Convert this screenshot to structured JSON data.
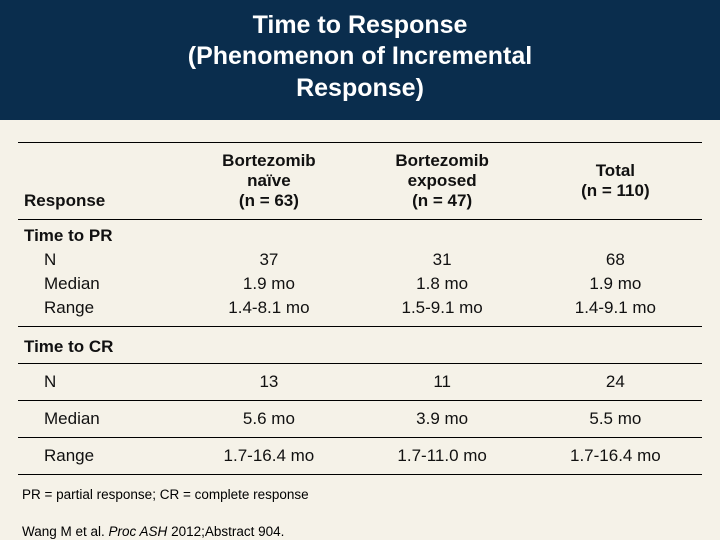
{
  "title_line1": "Time to Response",
  "title_line2": "(Phenomenon of Incremental",
  "title_line3": "Response)",
  "table": {
    "headers": {
      "response": "Response",
      "col1_l1": "Bortezomib",
      "col1_l2": "naïve",
      "col1_l3": "(n = 63)",
      "col2_l1": "Bortezomib",
      "col2_l2": "exposed",
      "col2_l3": "(n = 47)",
      "col3_l1": "Total",
      "col3_l2": "(n = 110)"
    },
    "pr": {
      "header": "Time to PR",
      "rows": {
        "n_label": "N",
        "n_v1": "37",
        "n_v2": "31",
        "n_v3": "68",
        "med_label": "Median",
        "med_v1": "1.9 mo",
        "med_v2": "1.8 mo",
        "med_v3": "1.9 mo",
        "rng_label": "Range",
        "rng_v1": "1.4-8.1 mo",
        "rng_v2": "1.5-9.1 mo",
        "rng_v3": "1.4-9.1 mo"
      }
    },
    "cr": {
      "header": "Time to CR",
      "rows": {
        "n_label": "N",
        "n_v1": "13",
        "n_v2": "11",
        "n_v3": "24",
        "med_label": "Median",
        "med_v1": "5.6 mo",
        "med_v2": "3.9 mo",
        "med_v3": "5.5 mo",
        "rng_label": "Range",
        "rng_v1": "1.7-16.4 mo",
        "rng_v2": "1.7-11.0 mo",
        "rng_v3": "1.7-16.4 mo"
      }
    }
  },
  "footnote": "PR = partial response; CR = complete response",
  "citation_author": "Wang M et al. ",
  "citation_source": "Proc ASH",
  "citation_rest": " 2012;Abstract 904."
}
